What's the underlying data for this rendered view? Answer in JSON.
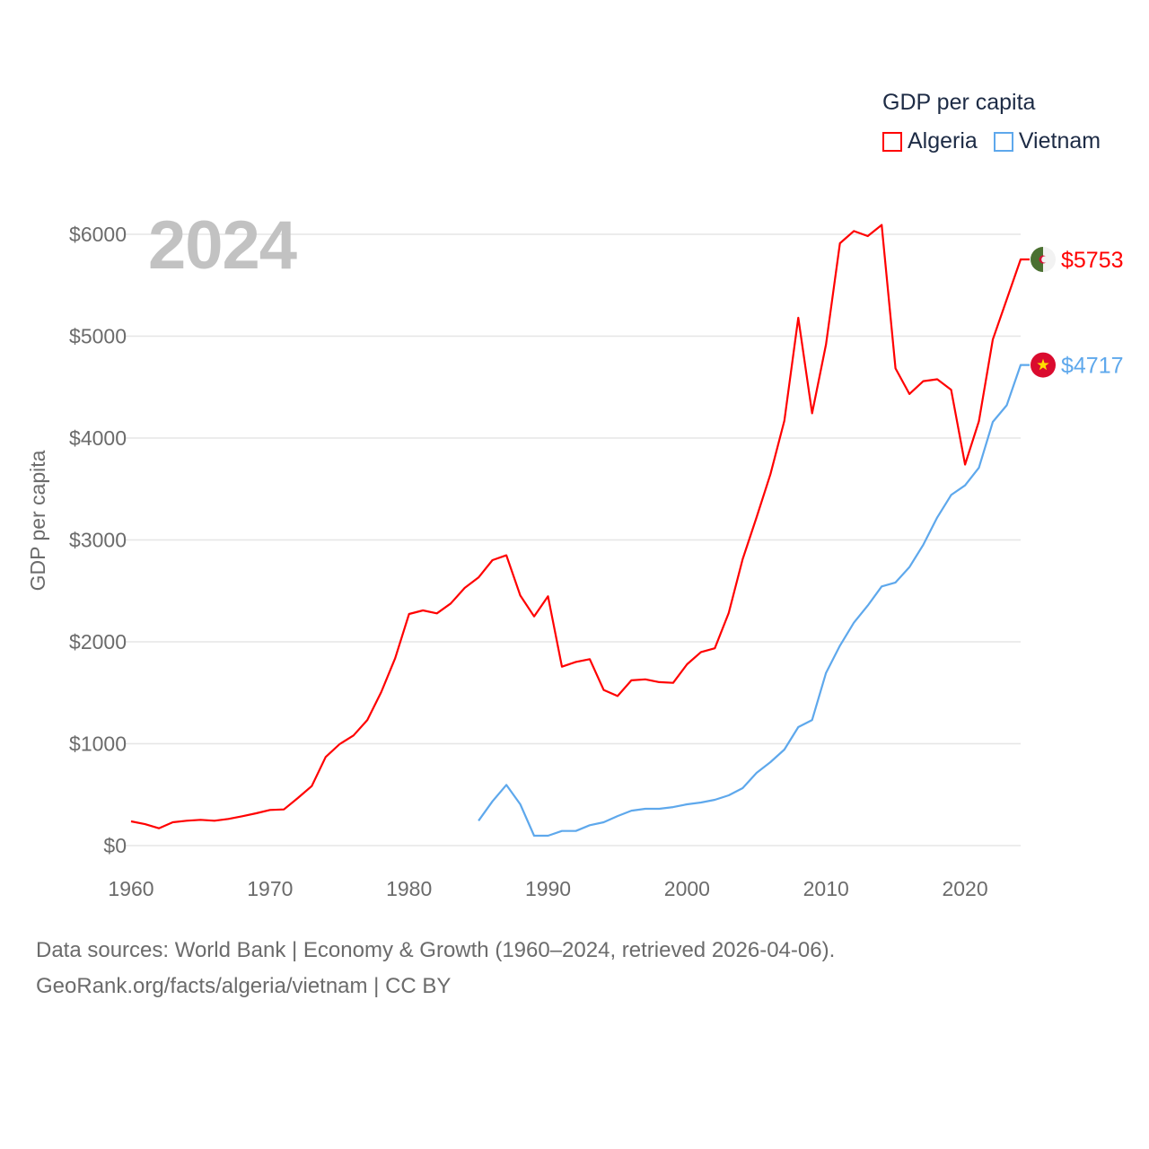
{
  "legend": {
    "title": "GDP per capita",
    "items": [
      {
        "label": "Algeria",
        "color": "#ff0000"
      },
      {
        "label": "Vietnam",
        "color": "#5ea8ec"
      }
    ]
  },
  "year_label": "2024",
  "footer": {
    "line1": "Data sources: World Bank | Economy & Growth (1960–2024, retrieved 2026-04-06).",
    "line2": "GeoRank.org/facts/algeria/vietnam | CC BY"
  },
  "chart_data": {
    "type": "line",
    "title": "GDP per capita",
    "xlabel": "",
    "ylabel": "GDP per capita",
    "xlim": [
      1960,
      2024
    ],
    "ylim": [
      0,
      6000
    ],
    "grid": true,
    "legend_position": "top-right",
    "x_ticks": [
      1960,
      1970,
      1980,
      1990,
      2000,
      2010,
      2020
    ],
    "x_tick_labels": [
      "1960",
      "1970",
      "1980",
      "1990",
      "2000",
      "2010",
      "2020"
    ],
    "y_ticks": [
      0,
      1000,
      2000,
      3000,
      4000,
      5000,
      6000
    ],
    "y_tick_labels": [
      "$0",
      "$1000",
      "$2000",
      "$3000",
      "$4000",
      "$5000",
      "$6000"
    ],
    "series": [
      {
        "name": "Algeria",
        "color": "#ff0000",
        "end_label": "$5753",
        "flag": "algeria-flag",
        "x": [
          1960,
          1961,
          1962,
          1963,
          1964,
          1965,
          1966,
          1967,
          1968,
          1969,
          1970,
          1971,
          1972,
          1973,
          1974,
          1975,
          1976,
          1977,
          1978,
          1979,
          1980,
          1981,
          1982,
          1983,
          1984,
          1985,
          1986,
          1987,
          1988,
          1989,
          1990,
          1991,
          1992,
          1993,
          1994,
          1995,
          1996,
          1997,
          1998,
          1999,
          2000,
          2001,
          2002,
          2003,
          2004,
          2005,
          2006,
          2007,
          2008,
          2009,
          2010,
          2011,
          2012,
          2013,
          2014,
          2015,
          2016,
          2017,
          2018,
          2019,
          2020,
          2021,
          2022,
          2023,
          2024
        ],
        "values": [
          238,
          211,
          170,
          229,
          244,
          253,
          244,
          262,
          288,
          317,
          350,
          355,
          467,
          584,
          870,
          996,
          1081,
          1233,
          1507,
          1839,
          2273,
          2308,
          2279,
          2376,
          2529,
          2632,
          2802,
          2849,
          2455,
          2249,
          2447,
          1756,
          1803,
          1830,
          1528,
          1468,
          1622,
          1632,
          1604,
          1597,
          1780,
          1900,
          1937,
          2283,
          2811,
          3221,
          3646,
          4171,
          5181,
          4243,
          4920,
          5912,
          6032,
          5982,
          6092,
          4684,
          4433,
          4559,
          4577,
          4473,
          3740,
          4165,
          4967,
          5360,
          5753
        ]
      },
      {
        "name": "Vietnam",
        "color": "#5ea8ec",
        "end_label": "$4717",
        "flag": "vietnam-flag",
        "x": [
          1985,
          1986,
          1987,
          1988,
          1989,
          1990,
          1991,
          1992,
          1993,
          1994,
          1995,
          1996,
          1997,
          1998,
          1999,
          2000,
          2001,
          2002,
          2003,
          2004,
          2005,
          2006,
          2007,
          2008,
          2009,
          2010,
          2011,
          2012,
          2013,
          2014,
          2015,
          2016,
          2017,
          2018,
          2019,
          2020,
          2021,
          2022,
          2023,
          2024
        ],
        "values": [
          244,
          434,
          596,
          405,
          97,
          97,
          144,
          144,
          200,
          229,
          290,
          343,
          361,
          361,
          378,
          405,
          423,
          449,
          493,
          564,
          714,
          819,
          943,
          1163,
          1233,
          1695,
          1962,
          2188,
          2356,
          2544,
          2582,
          2733,
          2953,
          3221,
          3441,
          3536,
          3708,
          4159,
          4322,
          4717
        ]
      }
    ]
  }
}
